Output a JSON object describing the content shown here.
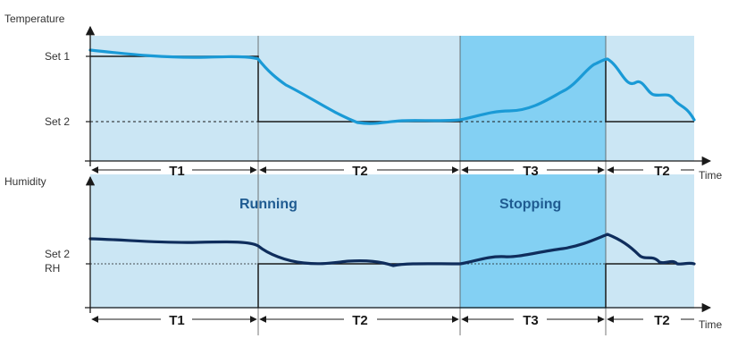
{
  "colors": {
    "running_bg": "#cbe6f4",
    "stopping_bg": "#83d0f3",
    "temperature_curve": "#1a9ad6",
    "humidity_curve": "#0f2d5c",
    "setpoint_line": "#1a1a1a",
    "state_text": "#1f5b91"
  },
  "temperature_chart": {
    "y_axis_label": "Temperature",
    "y_ticks": [
      "Set 1",
      "Set 2"
    ],
    "x_axis_label": "Time"
  },
  "humidity_chart": {
    "y_axis_label": "Humidity",
    "y_ticks": [
      "Set 2",
      "RH"
    ],
    "x_axis_label": "Time"
  },
  "states": {
    "running": "Running",
    "stopping": "Stopping"
  },
  "phases_top": [
    "T1",
    "T2",
    "T3",
    "T2"
  ],
  "phases_bottom": [
    "T1",
    "T2",
    "T3",
    "T2"
  ]
}
